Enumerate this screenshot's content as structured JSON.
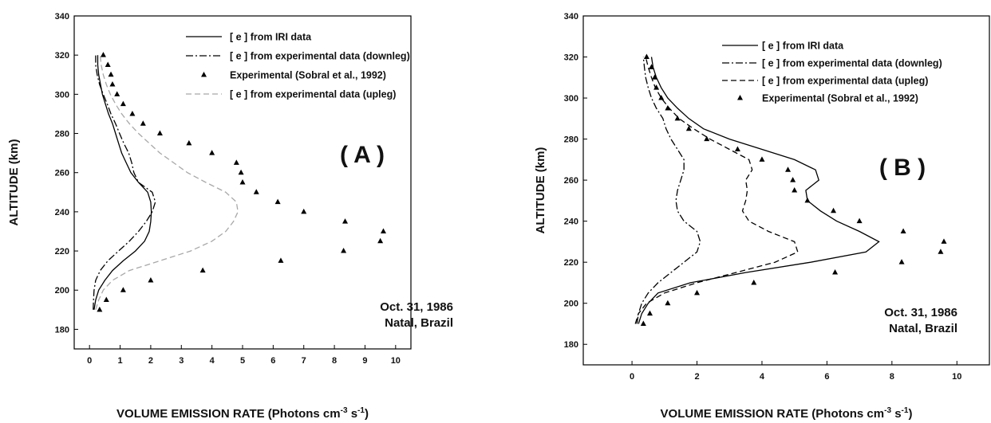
{
  "chart_data": [
    {
      "type": "line",
      "panel_label": "( A )",
      "xlabel": "VOLUME EMISSION RATE (Photons cm",
      "xlabel_sup1": "-3",
      "xlabel_mid": " s",
      "xlabel_sup2": "-1",
      "xlabel_end": ")",
      "ylabel": "ALTITUDE (km)",
      "xlim": [
        -0.5,
        10.5
      ],
      "ylim": [
        170,
        340
      ],
      "xticks": [
        0,
        1,
        2,
        3,
        4,
        5,
        6,
        7,
        8,
        9,
        10
      ],
      "yticks": [
        180,
        200,
        220,
        240,
        260,
        280,
        300,
        320,
        340
      ],
      "grid": false,
      "legend_position": "top-right",
      "annotation": [
        "Oct. 31, 1986",
        "Natal, Brazil"
      ],
      "series": [
        {
          "name": "[ e ] from IRI data",
          "style": "solid",
          "color": "#000000",
          "points": [
            [
              0.15,
              190
            ],
            [
              0.2,
              195
            ],
            [
              0.3,
              200
            ],
            [
              0.5,
              205
            ],
            [
              0.75,
              210
            ],
            [
              1.1,
              215
            ],
            [
              1.5,
              220
            ],
            [
              1.8,
              225
            ],
            [
              1.95,
              230
            ],
            [
              2.0,
              235
            ],
            [
              2.02,
              240
            ],
            [
              2.0,
              245
            ],
            [
              1.9,
              250
            ],
            [
              1.6,
              255
            ],
            [
              1.35,
              260
            ],
            [
              1.2,
              265
            ],
            [
              1.05,
              270
            ],
            [
              0.95,
              275
            ],
            [
              0.85,
              280
            ],
            [
              0.75,
              285
            ],
            [
              0.62,
              290
            ],
            [
              0.52,
              295
            ],
            [
              0.42,
              300
            ],
            [
              0.36,
              305
            ],
            [
              0.3,
              310
            ],
            [
              0.27,
              315
            ],
            [
              0.27,
              320
            ]
          ]
        },
        {
          "name": "[ e ] from experimental data (downleg)",
          "style": "dashdot",
          "color": "#000000",
          "points": [
            [
              0.12,
              190
            ],
            [
              0.13,
              195
            ],
            [
              0.15,
              200
            ],
            [
              0.2,
              205
            ],
            [
              0.35,
              210
            ],
            [
              0.6,
              215
            ],
            [
              0.95,
              220
            ],
            [
              1.3,
              225
            ],
            [
              1.6,
              230
            ],
            [
              1.85,
              235
            ],
            [
              2.05,
              240
            ],
            [
              2.15,
              245
            ],
            [
              2.05,
              250
            ],
            [
              1.6,
              255
            ],
            [
              1.45,
              260
            ],
            [
              1.38,
              265
            ],
            [
              1.28,
              270
            ],
            [
              1.12,
              275
            ],
            [
              0.98,
              280
            ],
            [
              0.85,
              285
            ],
            [
              0.7,
              290
            ],
            [
              0.58,
              295
            ],
            [
              0.45,
              300
            ],
            [
              0.33,
              305
            ],
            [
              0.25,
              310
            ],
            [
              0.2,
              315
            ],
            [
              0.2,
              320
            ]
          ]
        },
        {
          "name": "Experimental (Sobral et al., 1992)",
          "style": "markers",
          "color": "#000000",
          "points": [
            [
              0.33,
              190
            ],
            [
              0.55,
              195
            ],
            [
              1.1,
              200
            ],
            [
              2.0,
              205
            ],
            [
              3.7,
              210
            ],
            [
              6.25,
              215
            ],
            [
              8.3,
              220
            ],
            [
              9.5,
              225
            ],
            [
              9.6,
              230
            ],
            [
              8.35,
              235
            ],
            [
              7.0,
              240
            ],
            [
              6.15,
              245
            ],
            [
              5.45,
              250
            ],
            [
              5.0,
              255
            ],
            [
              4.95,
              260
            ],
            [
              4.8,
              265
            ],
            [
              4.0,
              270
            ],
            [
              3.25,
              275
            ],
            [
              2.3,
              280
            ],
            [
              1.75,
              285
            ],
            [
              1.4,
              290
            ],
            [
              1.1,
              295
            ],
            [
              0.9,
              300
            ],
            [
              0.75,
              305
            ],
            [
              0.7,
              310
            ],
            [
              0.6,
              315
            ],
            [
              0.45,
              320
            ]
          ]
        },
        {
          "name": "[ e ] from experimental data (upleg)",
          "style": "dashed",
          "color": "#a8a8a8",
          "points": [
            [
              0.2,
              190
            ],
            [
              0.3,
              195
            ],
            [
              0.45,
              200
            ],
            [
              0.75,
              205
            ],
            [
              1.3,
              210
            ],
            [
              2.3,
              215
            ],
            [
              3.3,
              220
            ],
            [
              4.0,
              225
            ],
            [
              4.45,
              230
            ],
            [
              4.7,
              235
            ],
            [
              4.85,
              240
            ],
            [
              4.8,
              245
            ],
            [
              4.45,
              250
            ],
            [
              3.8,
              255
            ],
            [
              3.2,
              260
            ],
            [
              2.75,
              265
            ],
            [
              2.3,
              270
            ],
            [
              1.95,
              275
            ],
            [
              1.6,
              280
            ],
            [
              1.3,
              285
            ],
            [
              1.05,
              290
            ],
            [
              0.85,
              295
            ],
            [
              0.68,
              300
            ],
            [
              0.55,
              305
            ],
            [
              0.45,
              310
            ],
            [
              0.38,
              315
            ],
            [
              0.35,
              320
            ]
          ]
        }
      ]
    },
    {
      "type": "line",
      "panel_label": "( B )",
      "xlabel": "VOLUME EMISSION RATE (Photons cm",
      "xlabel_sup1": "-3",
      "xlabel_mid": " s",
      "xlabel_sup2": "-1",
      "xlabel_end": ")",
      "ylabel": "ALTITUDE (km)",
      "xlim": [
        -1.5,
        11.0
      ],
      "ylim": [
        170,
        340
      ],
      "xticks": [
        0,
        2,
        4,
        6,
        8,
        10
      ],
      "yticks": [
        180,
        200,
        220,
        240,
        260,
        280,
        300,
        320,
        340
      ],
      "grid": false,
      "legend_position": "top-right",
      "annotation": [
        "Oct. 31, 1986",
        "Natal, Brazil"
      ],
      "series": [
        {
          "name": "[ e ] from IRI data",
          "style": "solid",
          "color": "#000000",
          "points": [
            [
              0.2,
              190
            ],
            [
              0.3,
              195
            ],
            [
              0.5,
              200
            ],
            [
              0.8,
              205
            ],
            [
              1.8,
              210
            ],
            [
              3.5,
              215
            ],
            [
              5.5,
              220
            ],
            [
              7.2,
              225
            ],
            [
              7.6,
              230
            ],
            [
              7.0,
              235
            ],
            [
              6.3,
              240
            ],
            [
              5.8,
              245
            ],
            [
              5.4,
              250
            ],
            [
              5.35,
              255
            ],
            [
              5.75,
              260
            ],
            [
              5.65,
              265
            ],
            [
              5.0,
              270
            ],
            [
              4.0,
              275
            ],
            [
              3.0,
              280
            ],
            [
              2.2,
              285
            ],
            [
              1.75,
              290
            ],
            [
              1.4,
              295
            ],
            [
              1.1,
              300
            ],
            [
              0.9,
              305
            ],
            [
              0.75,
              310
            ],
            [
              0.65,
              315
            ],
            [
              0.6,
              320
            ]
          ]
        },
        {
          "name": "[ e ] from experimental data (downleg)",
          "style": "dashdot",
          "color": "#000000",
          "points": [
            [
              0.15,
              190
            ],
            [
              0.2,
              195
            ],
            [
              0.3,
              200
            ],
            [
              0.5,
              205
            ],
            [
              0.8,
              210
            ],
            [
              1.2,
              215
            ],
            [
              1.6,
              220
            ],
            [
              2.0,
              225
            ],
            [
              2.1,
              230
            ],
            [
              2.0,
              235
            ],
            [
              1.6,
              240
            ],
            [
              1.4,
              245
            ],
            [
              1.35,
              250
            ],
            [
              1.4,
              255
            ],
            [
              1.5,
              260
            ],
            [
              1.6,
              265
            ],
            [
              1.6,
              270
            ],
            [
              1.4,
              275
            ],
            [
              1.2,
              280
            ],
            [
              1.05,
              285
            ],
            [
              0.95,
              290
            ],
            [
              0.75,
              295
            ],
            [
              0.6,
              300
            ],
            [
              0.5,
              305
            ],
            [
              0.42,
              310
            ],
            [
              0.38,
              315
            ],
            [
              0.35,
              320
            ]
          ]
        },
        {
          "name": "[ e ] from experimental data (upleg)",
          "style": "dashed",
          "color": "#000000",
          "points": [
            [
              0.1,
              190
            ],
            [
              0.2,
              195
            ],
            [
              0.45,
              200
            ],
            [
              1.0,
              205
            ],
            [
              2.0,
              210
            ],
            [
              3.2,
              215
            ],
            [
              4.4,
              220
            ],
            [
              5.1,
              225
            ],
            [
              5.0,
              230
            ],
            [
              4.2,
              235
            ],
            [
              3.6,
              240
            ],
            [
              3.4,
              245
            ],
            [
              3.5,
              250
            ],
            [
              3.55,
              255
            ],
            [
              3.5,
              260
            ],
            [
              3.7,
              265
            ],
            [
              3.6,
              270
            ],
            [
              3.0,
              275
            ],
            [
              2.4,
              280
            ],
            [
              1.9,
              285
            ],
            [
              1.45,
              290
            ],
            [
              1.15,
              295
            ],
            [
              0.9,
              300
            ],
            [
              0.72,
              305
            ],
            [
              0.6,
              310
            ],
            [
              0.5,
              315
            ],
            [
              0.42,
              320
            ]
          ]
        },
        {
          "name": "Experimental (Sobral et al., 1992)",
          "style": "markers",
          "color": "#000000",
          "points": [
            [
              0.35,
              190
            ],
            [
              0.55,
              195
            ],
            [
              1.1,
              200
            ],
            [
              2.0,
              205
            ],
            [
              3.75,
              210
            ],
            [
              6.25,
              215
            ],
            [
              8.3,
              220
            ],
            [
              9.5,
              225
            ],
            [
              9.6,
              230
            ],
            [
              8.35,
              235
            ],
            [
              7.0,
              240
            ],
            [
              6.2,
              245
            ],
            [
              5.4,
              250
            ],
            [
              5.0,
              255
            ],
            [
              4.95,
              260
            ],
            [
              4.8,
              265
            ],
            [
              4.0,
              270
            ],
            [
              3.25,
              275
            ],
            [
              2.3,
              280
            ],
            [
              1.75,
              285
            ],
            [
              1.4,
              290
            ],
            [
              1.1,
              295
            ],
            [
              0.9,
              300
            ],
            [
              0.75,
              305
            ],
            [
              0.7,
              310
            ],
            [
              0.6,
              315
            ],
            [
              0.45,
              320
            ]
          ]
        }
      ]
    }
  ]
}
